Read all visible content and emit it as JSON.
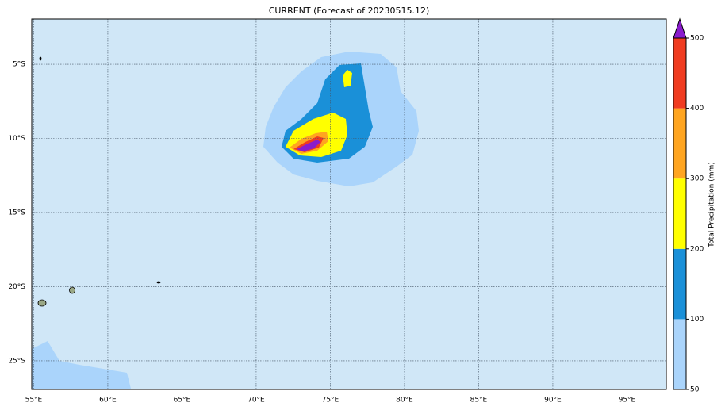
{
  "map": {
    "title": "CURRENT (Forecast of 20230515.12)",
    "xlim": [
      54.87,
      97.65
    ],
    "ylim": [
      -26.93,
      -1.95
    ],
    "xticks": [
      {
        "value": 55,
        "label": "55°E"
      },
      {
        "value": 60,
        "label": "60°E"
      },
      {
        "value": 65,
        "label": "65°E"
      },
      {
        "value": 70,
        "label": "70°E"
      },
      {
        "value": 75,
        "label": "75°E"
      },
      {
        "value": 80,
        "label": "80°E"
      },
      {
        "value": 85,
        "label": "85°E"
      },
      {
        "value": 90,
        "label": "90°E"
      },
      {
        "value": 95,
        "label": "95°E"
      }
    ],
    "yticks": [
      {
        "value": -5,
        "label": "5°S"
      },
      {
        "value": -10,
        "label": "10°S"
      },
      {
        "value": -15,
        "label": "15°S"
      },
      {
        "value": -20,
        "label": "20°S"
      },
      {
        "value": -25,
        "label": "25°S"
      }
    ],
    "grid": true
  },
  "colorbar": {
    "label": "Total Precipitation (mm)",
    "ticks": [
      50,
      100,
      200,
      300,
      400,
      500
    ],
    "colors": [
      "#aad4fb",
      "#1a90d8",
      "#ffff00",
      "#ffa520",
      "#f03c20"
    ],
    "extend_color": "#8a1ccc"
  }
}
